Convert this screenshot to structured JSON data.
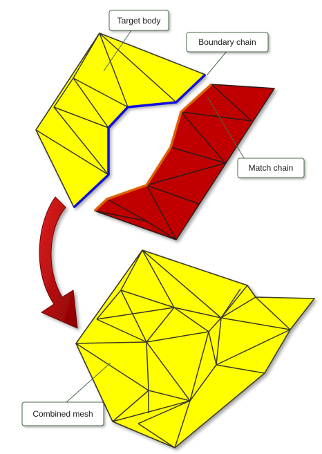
{
  "labels": {
    "target_body": "Target body",
    "boundary_chain": "Boundary chain",
    "match_chain": "Match chain",
    "combined_mesh": "Combined mesh"
  },
  "colors": {
    "target_fill": "#ffff00",
    "match_fill": "#c00000",
    "mesh_fill": "#ffff00",
    "mesh_edge": "#3a3a2a",
    "boundary_chain": "#1010e0",
    "match_chain": "#e06000",
    "arrow": "#b00000",
    "callout_border": "#4a6a4a"
  },
  "icons": {
    "flow_arrow": "curved-arrow-down-right-icon"
  }
}
